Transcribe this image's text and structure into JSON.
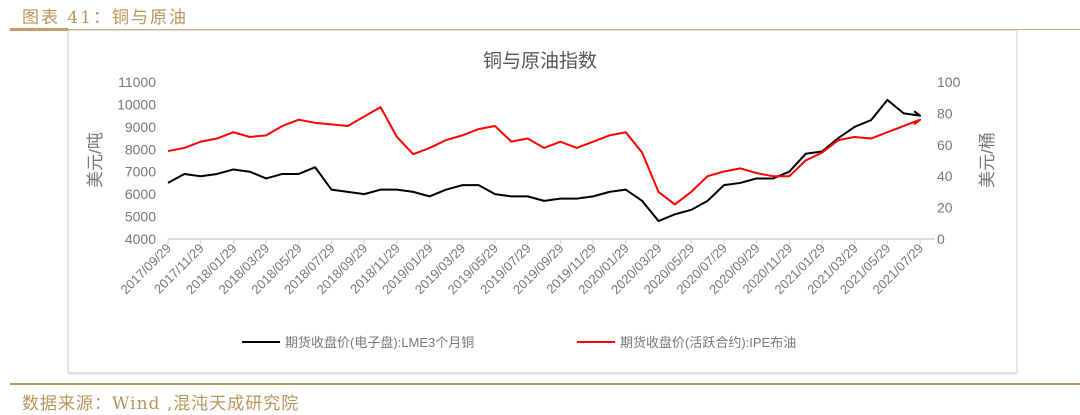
{
  "figure_label": "图表 41：铜与原油",
  "source": "数据来源：Wind ,混沌天成研究院",
  "chart_data": {
    "type": "line",
    "title": "铜与原油指数",
    "ylabel_left": "美元/吨",
    "ylabel_right": "美元/桶",
    "ylim_left": [
      4000,
      11000
    ],
    "yticks_left": [
      4000,
      5000,
      6000,
      7000,
      8000,
      9000,
      10000,
      11000
    ],
    "ylim_right": [
      0,
      100
    ],
    "yticks_right": [
      0,
      20,
      40,
      60,
      80,
      100
    ],
    "xtick_labels": [
      "2017/09/29",
      "2017/11/29",
      "2018/01/29",
      "2018/03/29",
      "2018/05/29",
      "2018/07/29",
      "2018/09/29",
      "2018/11/29",
      "2019/01/29",
      "2019/03/29",
      "2019/05/29",
      "2019/07/29",
      "2019/09/29",
      "2019/11/29",
      "2020/01/29",
      "2020/03/29",
      "2020/05/29",
      "2020/07/29",
      "2020/09/29",
      "2020/11/29",
      "2021/01/29",
      "2021/03/29",
      "2021/05/29",
      "2021/07/29"
    ],
    "x": [
      "2017-09",
      "2017-10",
      "2017-11",
      "2017-12",
      "2018-01",
      "2018-02",
      "2018-03",
      "2018-04",
      "2018-05",
      "2018-06",
      "2018-07",
      "2018-08",
      "2018-09",
      "2018-10",
      "2018-11",
      "2018-12",
      "2019-01",
      "2019-02",
      "2019-03",
      "2019-04",
      "2019-05",
      "2019-06",
      "2019-07",
      "2019-08",
      "2019-09",
      "2019-10",
      "2019-11",
      "2019-12",
      "2020-01",
      "2020-02",
      "2020-03",
      "2020-04",
      "2020-05",
      "2020-06",
      "2020-07",
      "2020-08",
      "2020-09",
      "2020-10",
      "2020-11",
      "2020-12",
      "2021-01",
      "2021-02",
      "2021-03",
      "2021-04",
      "2021-05",
      "2021-06",
      "2021-07",
      "2021-08"
    ],
    "series": [
      {
        "name": "期货收盘价(电子盘):LME3个月铜",
        "axis": "left",
        "color": "#000000",
        "values": [
          6500,
          6900,
          6800,
          6900,
          7100,
          7000,
          6700,
          6900,
          6900,
          7200,
          6200,
          6100,
          6000,
          6200,
          6200,
          6100,
          5900,
          6200,
          6400,
          6400,
          6000,
          5900,
          5900,
          5700,
          5800,
          5800,
          5900,
          6100,
          6200,
          5700,
          4800,
          5100,
          5300,
          5700,
          6400,
          6500,
          6700,
          6700,
          7000,
          7800,
          7900,
          8500,
          9000,
          9300,
          10200,
          9600,
          9500,
          9700
        ]
      },
      {
        "name": "期货收盘价(活跃合约):IPE布油",
        "axis": "right",
        "color": "#ff0000",
        "values": [
          56,
          58,
          62,
          64,
          68,
          65,
          66,
          72,
          76,
          74,
          73,
          72,
          78,
          84,
          65,
          54,
          58,
          63,
          66,
          70,
          72,
          62,
          64,
          58,
          62,
          58,
          62,
          66,
          68,
          55,
          30,
          22,
          30,
          40,
          43,
          45,
          42,
          40,
          40,
          50,
          55,
          63,
          65,
          64,
          68,
          72,
          76,
          73
        ]
      }
    ],
    "legend": "bottom",
    "grid": false
  }
}
